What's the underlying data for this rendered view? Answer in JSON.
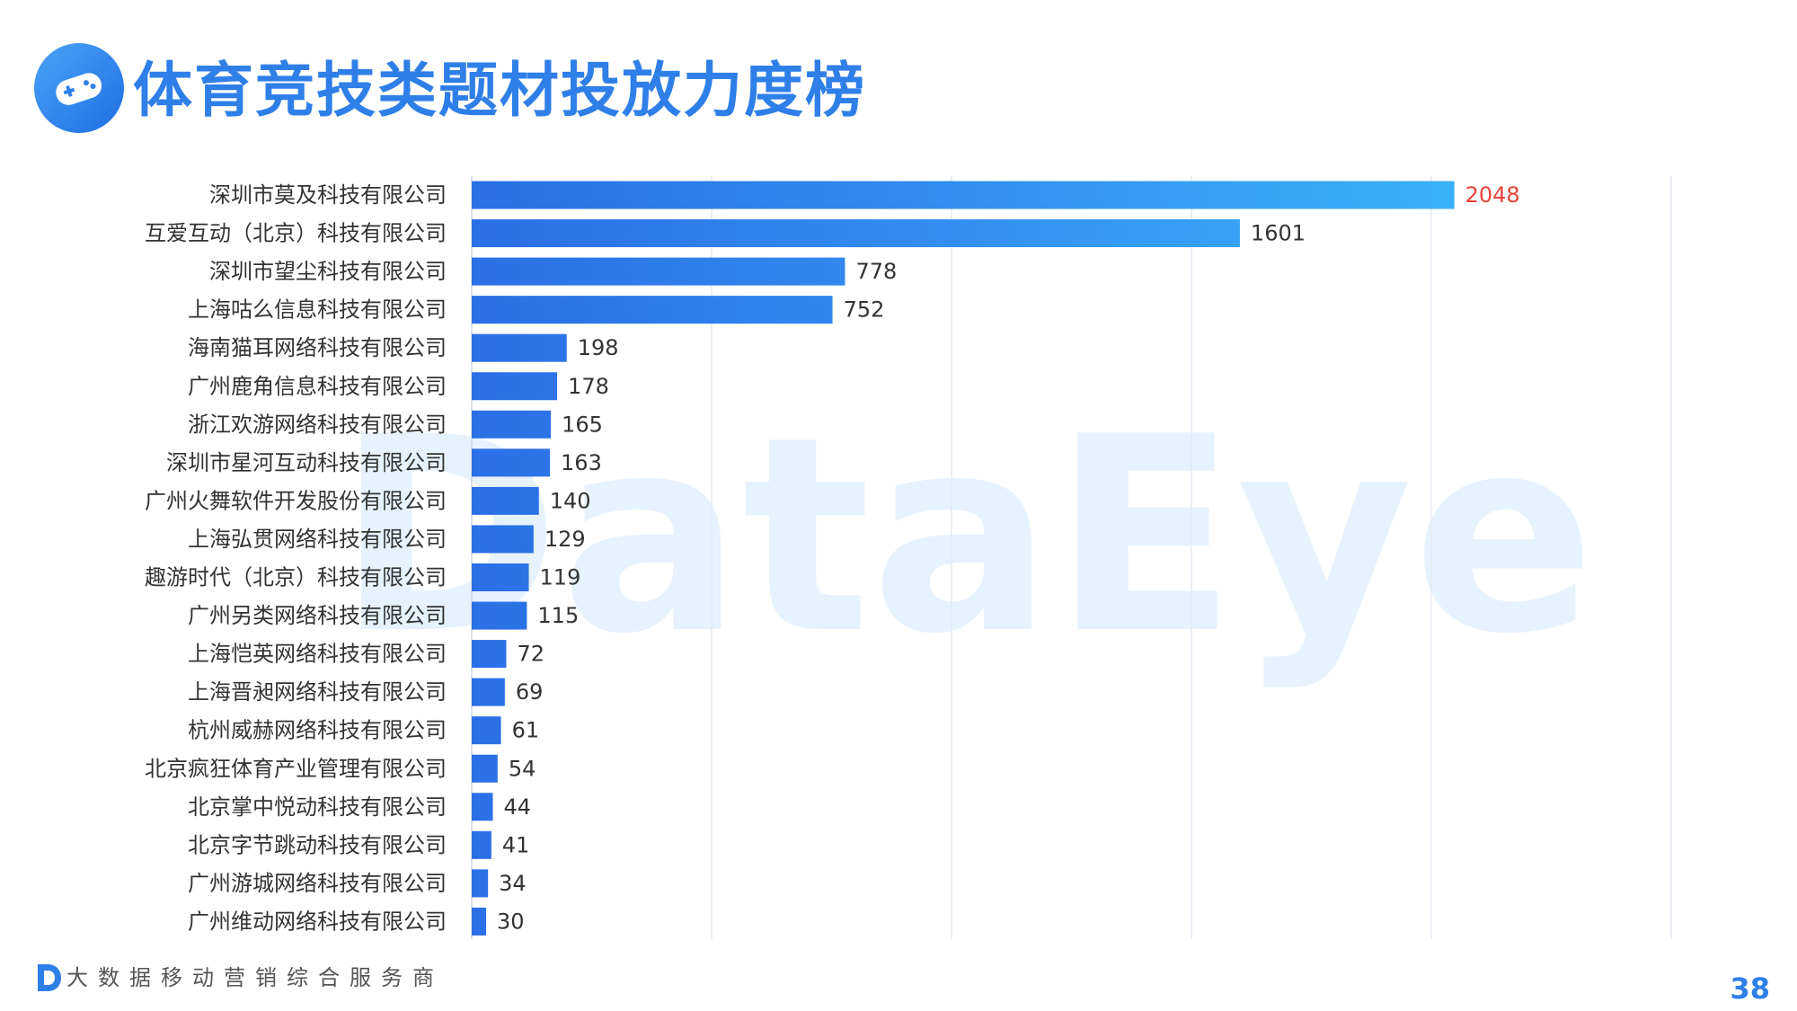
{
  "header": {
    "title": "体育竞技类题材投放力度榜",
    "icon": "gamepad-icon"
  },
  "watermark": "DataEye",
  "footer": {
    "logo": "dataeye-logo",
    "tagline": "大数据移动营销综合服务商",
    "page_number": "38"
  },
  "colors": {
    "accent": "#2f7fe8",
    "bar_start": "#2b6fe6",
    "bar_end": "#3ab0fa",
    "top_value": "#e8423a",
    "grid": "#e4e9f0"
  },
  "chart_data": {
    "type": "bar",
    "orientation": "horizontal",
    "categories": [
      "深圳市莫及科技有限公司",
      "互爱互动（北京）科技有限公司",
      "深圳市望尘科技有限公司",
      "上海咕么信息科技有限公司",
      "海南猫耳网络科技有限公司",
      "广州鹿角信息科技有限公司",
      "浙江欢游网络科技有限公司",
      "深圳市星河互动科技有限公司",
      "广州火舞软件开发股份有限公司",
      "上海弘贯网络科技有限公司",
      "趣游时代（北京）科技有限公司",
      "广州另类网络科技有限公司",
      "上海恺英网络科技有限公司",
      "上海晋昶网络科技有限公司",
      "杭州威赫网络科技有限公司",
      "北京疯狂体育产业管理有限公司",
      "北京掌中悦动科技有限公司",
      "北京字节跳动科技有限公司",
      "广州游城网络科技有限公司",
      "广州维动网络科技有限公司"
    ],
    "values": [
      2048,
      1601,
      778,
      752,
      198,
      178,
      165,
      163,
      140,
      129,
      119,
      115,
      72,
      69,
      61,
      54,
      44,
      41,
      34,
      30
    ],
    "value_labels": [
      "2048",
      "1601",
      "778",
      "752",
      "198",
      "178",
      "165",
      "163",
      "140",
      "129",
      "119",
      "115",
      "72",
      "69",
      "61",
      "54",
      "44",
      "41",
      "34",
      "30"
    ],
    "xlim": [
      0,
      2500
    ],
    "grid_interval": 500,
    "grid": true,
    "legend": "none",
    "title": "",
    "xlabel": "",
    "ylabel": ""
  }
}
